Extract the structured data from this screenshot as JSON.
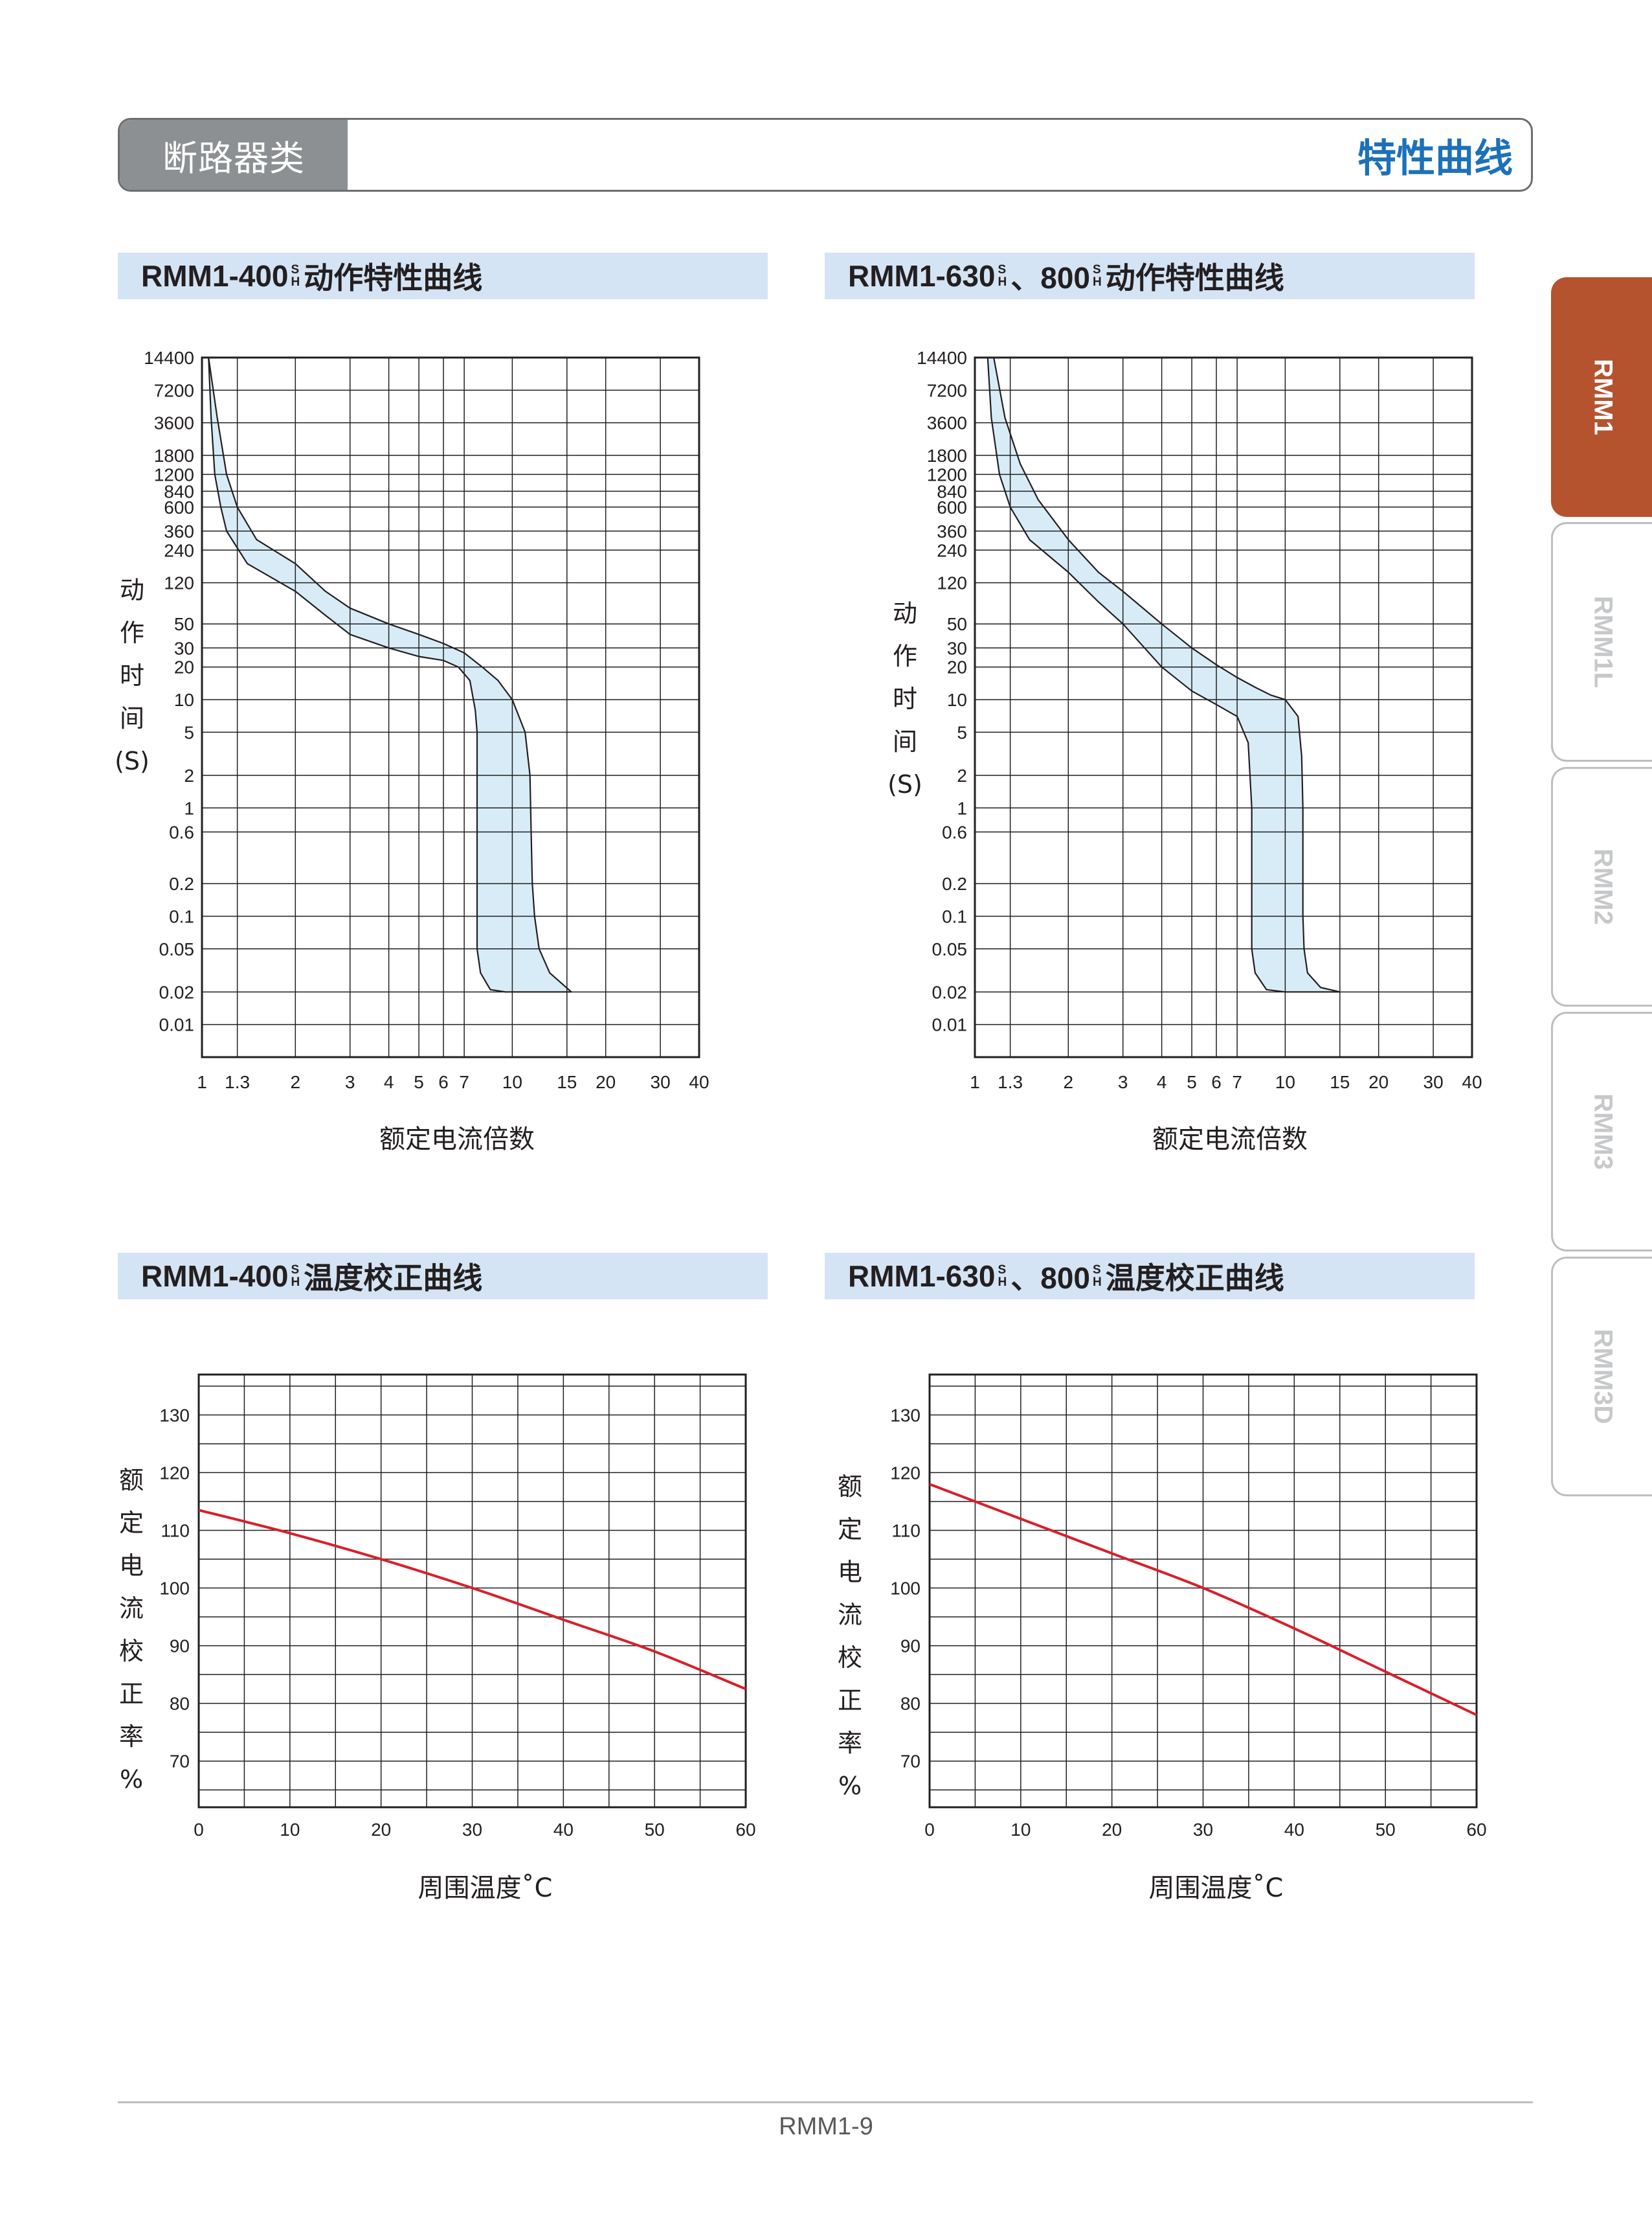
{
  "header": {
    "category": "断路器类",
    "title": "特性曲线"
  },
  "tabs": [
    {
      "label": "RMM1",
      "active": true
    },
    {
      "label": "RMM1L",
      "active": false
    },
    {
      "label": "RMM2",
      "active": false
    },
    {
      "label": "RMM3",
      "active": false
    },
    {
      "label": "RMM3D",
      "active": false
    }
  ],
  "colors": {
    "band_fill": "#d7ecf7",
    "curve_red": "#d7202a",
    "grid": "#231f20",
    "accent_blue": "#1d71b8",
    "tab_active": "#b5532f"
  },
  "chart_titles": [
    {
      "parts": [
        "RMM1-400",
        "S",
        "H",
        "动作特性曲线"
      ]
    },
    {
      "parts": [
        "RMM1-630",
        "S",
        "H",
        "、800",
        "S",
        "H",
        "动作特性曲线"
      ]
    },
    {
      "parts": [
        "RMM1-400",
        "S",
        "H",
        "温度校正曲线"
      ]
    },
    {
      "parts": [
        "RMM1-630",
        "S",
        "H",
        "、800",
        "S",
        "H",
        "温度校正曲线"
      ]
    }
  ],
  "chart_data": [
    {
      "type": "area",
      "title": "RMM1-400 S H 动作特性曲线",
      "xlabel": "额定电流倍数",
      "ylabel": [
        "动",
        "作",
        "时",
        "间",
        "(S)"
      ],
      "xscale": "log",
      "yscale": "log",
      "xlim": [
        1,
        40
      ],
      "ylim": [
        0.005,
        14400
      ],
      "grid": true,
      "x_ticks": [
        1,
        1.3,
        2,
        3,
        4,
        5,
        6,
        7,
        10,
        15,
        20,
        30,
        40
      ],
      "x_tick_labels": [
        "1",
        "1.3",
        "2",
        "3",
        "4",
        "5",
        "6",
        "7",
        "10",
        "15",
        "20",
        "30",
        "40"
      ],
      "y_ticks": [
        14400,
        7200,
        3600,
        1800,
        1200,
        840,
        600,
        360,
        240,
        120,
        50,
        30,
        20,
        10,
        5,
        2,
        1,
        0.6,
        0.2,
        0.1,
        0.05,
        0.02,
        0.01
      ],
      "y_tick_labels": [
        "14400",
        "7200",
        "3600",
        "1800",
        "1200",
        "840",
        "600",
        "360",
        "240",
        "120",
        "50",
        "30",
        "20",
        "10",
        "5",
        "2",
        "1",
        "0.6",
        "0.2",
        "0.1",
        "0.05",
        "0.02",
        "0.01"
      ],
      "series": [
        {
          "values": [
            [
              1.05,
              14400
            ],
            [
              1.12,
              4000
            ],
            [
              1.2,
              1200
            ],
            [
              1.3,
              600
            ],
            [
              1.5,
              300
            ],
            [
              2,
              180
            ],
            [
              2.5,
              100
            ],
            [
              3,
              70
            ],
            [
              4,
              50
            ],
            [
              5,
              40
            ],
            [
              6,
              33
            ],
            [
              7,
              27
            ],
            [
              8,
              20
            ],
            [
              9,
              15
            ],
            [
              10,
              10
            ],
            [
              11,
              5
            ],
            [
              11.4,
              2
            ],
            [
              11.5,
              0.6
            ],
            [
              11.6,
              0.2
            ],
            [
              11.8,
              0.1
            ],
            [
              12.2,
              0.05
            ],
            [
              13.2,
              0.03
            ],
            [
              15.5,
              0.02
            ]
          ]
        },
        {
          "values": [
            [
              1.05,
              14400
            ],
            [
              1.07,
              4000
            ],
            [
              1.1,
              1200
            ],
            [
              1.15,
              600
            ],
            [
              1.2,
              360
            ],
            [
              1.4,
              180
            ],
            [
              2,
              100
            ],
            [
              2.5,
              60
            ],
            [
              3,
              40
            ],
            [
              4,
              30
            ],
            [
              5,
              25
            ],
            [
              6,
              23
            ],
            [
              6.7,
              20
            ],
            [
              7.3,
              15
            ],
            [
              7.6,
              8
            ],
            [
              7.7,
              5
            ],
            [
              7.7,
              1
            ],
            [
              7.7,
              0.1
            ],
            [
              7.7,
              0.05
            ],
            [
              7.9,
              0.03
            ],
            [
              8.5,
              0.021
            ],
            [
              9.5,
              0.02
            ],
            [
              15.5,
              0.02
            ]
          ]
        }
      ]
    },
    {
      "type": "area",
      "title": "RMM1-630 S H 、800 S H 动作特性曲线",
      "xlabel": "额定电流倍数",
      "ylabel": [
        "动",
        "作",
        "时",
        "间",
        "(S)"
      ],
      "xscale": "log",
      "yscale": "log",
      "xlim": [
        1,
        40
      ],
      "ylim": [
        0.005,
        14400
      ],
      "grid": true,
      "x_ticks": [
        1,
        1.3,
        2,
        3,
        4,
        5,
        6,
        7,
        10,
        15,
        20,
        30,
        40
      ],
      "x_tick_labels": [
        "1",
        "1.3",
        "2",
        "3",
        "4",
        "5",
        "6",
        "7",
        "10",
        "15",
        "20",
        "30",
        "40"
      ],
      "y_ticks": [
        14400,
        7200,
        3600,
        1800,
        1200,
        840,
        600,
        360,
        240,
        120,
        50,
        30,
        20,
        10,
        5,
        2,
        1,
        0.6,
        0.2,
        0.1,
        0.05,
        0.02,
        0.01
      ],
      "y_tick_labels": [
        "14400",
        "7200",
        "3600",
        "1800",
        "1200",
        "840",
        "600",
        "360",
        "240",
        "120",
        "50",
        "30",
        "20",
        "10",
        "5",
        "2",
        "1",
        "0.6",
        "0.2",
        "0.1",
        "0.05",
        "0.02",
        "0.01"
      ],
      "series": [
        {
          "values": [
            [
              1.15,
              14400
            ],
            [
              1.25,
              4000
            ],
            [
              1.4,
              1500
            ],
            [
              1.6,
              700
            ],
            [
              2,
              300
            ],
            [
              2.5,
              150
            ],
            [
              3,
              100
            ],
            [
              4,
              50
            ],
            [
              5,
              30
            ],
            [
              6,
              21
            ],
            [
              7,
              16
            ],
            [
              8,
              13
            ],
            [
              9,
              11
            ],
            [
              10,
              10
            ],
            [
              11,
              7
            ],
            [
              11.3,
              3
            ],
            [
              11.4,
              1
            ],
            [
              11.4,
              0.1
            ],
            [
              11.5,
              0.05
            ],
            [
              11.8,
              0.03
            ],
            [
              13,
              0.022
            ],
            [
              15,
              0.02
            ]
          ]
        },
        {
          "values": [
            [
              1.1,
              14400
            ],
            [
              1.13,
              4000
            ],
            [
              1.2,
              1200
            ],
            [
              1.3,
              600
            ],
            [
              1.5,
              300
            ],
            [
              2,
              150
            ],
            [
              2.5,
              80
            ],
            [
              3,
              50
            ],
            [
              4,
              20
            ],
            [
              5,
              12
            ],
            [
              6,
              9
            ],
            [
              7,
              7
            ],
            [
              7.6,
              4
            ],
            [
              7.8,
              1
            ],
            [
              7.8,
              0.1
            ],
            [
              7.8,
              0.05
            ],
            [
              8,
              0.03
            ],
            [
              8.7,
              0.021
            ],
            [
              10,
              0.02
            ],
            [
              15,
              0.02
            ]
          ]
        }
      ]
    },
    {
      "type": "line",
      "title": "RMM1-400 S H 温度校正曲线",
      "xlabel": "周围温度˚C",
      "ylabel": [
        "额",
        "定",
        "电",
        "流",
        "校",
        "正",
        "率",
        "%"
      ],
      "xlim": [
        0,
        60
      ],
      "ylim": [
        62,
        137
      ],
      "grid": true,
      "x_ticks": [
        0,
        10,
        20,
        30,
        40,
        50,
        60
      ],
      "y_ticks": [
        70,
        80,
        90,
        100,
        110,
        120,
        130
      ],
      "series": [
        {
          "x": [
            0,
            10,
            20,
            30,
            40,
            50,
            60
          ],
          "values": [
            113.5,
            109.5,
            105,
            100,
            94.5,
            89,
            82.5
          ]
        }
      ]
    },
    {
      "type": "line",
      "title": "RMM1-630 S H 、800 S H 温度校正曲线",
      "xlabel": "周围温度˚C",
      "ylabel": [
        "额",
        "定",
        "电",
        "流",
        "校",
        "正",
        "率",
        "%"
      ],
      "xlim": [
        0,
        60
      ],
      "ylim": [
        62,
        137
      ],
      "grid": true,
      "x_ticks": [
        0,
        10,
        20,
        30,
        40,
        50,
        60
      ],
      "y_ticks": [
        70,
        80,
        90,
        100,
        110,
        120,
        130
      ],
      "series": [
        {
          "x": [
            0,
            10,
            20,
            30,
            40,
            50,
            60
          ],
          "values": [
            118,
            112,
            106,
            100,
            93,
            85.5,
            78
          ]
        }
      ]
    }
  ],
  "footer": {
    "page_number": "RMM1-9"
  }
}
